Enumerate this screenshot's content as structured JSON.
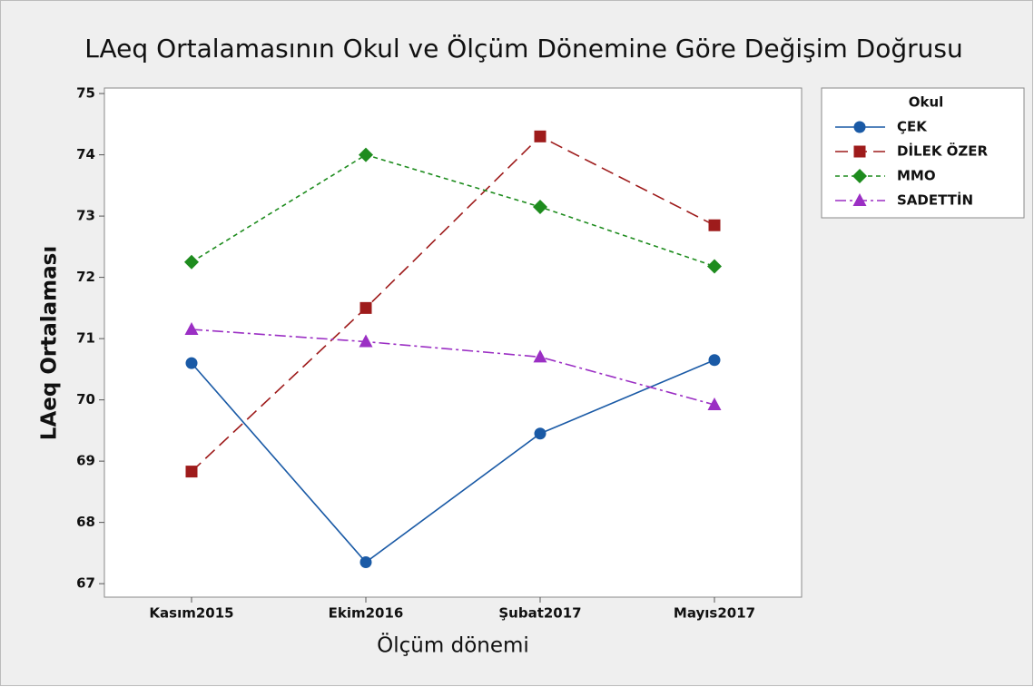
{
  "chart_data": {
    "type": "line",
    "title": "LAeq Ortalamasının Okul ve Ölçüm Dönemine Göre Değişim Doğrusu",
    "x_label": "Ölçüm dönemi",
    "y_label": "LAeq Ortalaması",
    "categories": [
      "Kasım2015",
      "Ekim2016",
      "Şubat2017",
      "Mayıs2017"
    ],
    "legend_title": "Okul",
    "legend": "right",
    "ylim": [
      66.78,
      75.09
    ],
    "yticks": [
      67,
      68,
      69,
      70,
      71,
      72,
      73,
      74,
      75
    ],
    "series": [
      {
        "name": "ÇEK",
        "color": "#1a5aa6",
        "marker": "circle",
        "dash": "solid",
        "values": [
          70.6,
          67.35,
          69.45,
          70.65
        ]
      },
      {
        "name": "DİLEK ÖZER",
        "color": "#9e1b1b",
        "marker": "square",
        "dash": "long",
        "values": [
          68.83,
          71.5,
          74.3,
          72.85
        ]
      },
      {
        "name": "MMO",
        "color": "#1e8c1e",
        "marker": "diamond",
        "dash": "short",
        "values": [
          72.25,
          74.0,
          73.15,
          72.18
        ]
      },
      {
        "name": "SADETTİN",
        "color": "#9b2fc4",
        "marker": "triangle",
        "dash": "dashdot",
        "values": [
          71.15,
          70.95,
          70.7,
          69.92
        ]
      }
    ]
  }
}
